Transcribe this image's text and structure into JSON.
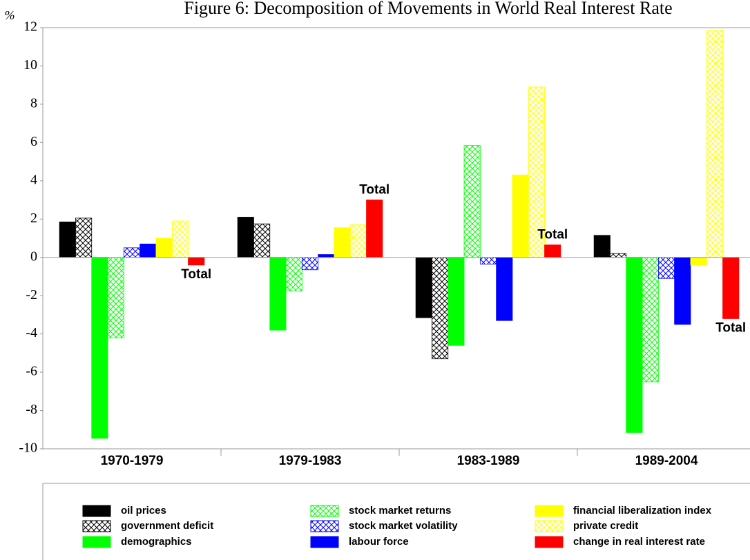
{
  "chart_data": {
    "type": "bar",
    "title": "Figure 6: Decomposition of Movements in World Real Interest Rate",
    "y_label": "%",
    "categories": [
      "1970-1979",
      "1979-1983",
      "1983-1989",
      "1989-2004"
    ],
    "series": [
      {
        "name": "oil prices",
        "color": "#000000",
        "pattern": "solid",
        "values": [
          1.85,
          2.1,
          -3.15,
          1.15
        ]
      },
      {
        "name": "government deficit",
        "color": "#000000",
        "pattern": "crosshatch",
        "values": [
          2.05,
          1.75,
          -5.3,
          0.2
        ]
      },
      {
        "name": "demographics",
        "color": "#00ff00",
        "pattern": "solid",
        "values": [
          -9.45,
          -3.8,
          -4.6,
          -9.15
        ]
      },
      {
        "name": "stock market returns",
        "color": "#00ff00",
        "pattern": "crosshatch",
        "values": [
          -4.2,
          -1.75,
          5.85,
          -6.5
        ]
      },
      {
        "name": "stock market volatility",
        "color": "#0000ff",
        "pattern": "crosshatch",
        "values": [
          0.5,
          -0.65,
          -0.35,
          -1.1
        ]
      },
      {
        "name": "labour force",
        "color": "#0000ff",
        "pattern": "solid",
        "values": [
          0.7,
          0.15,
          -3.3,
          -3.5
        ]
      },
      {
        "name": "financial liberalization index",
        "color": "#ffff00",
        "pattern": "solid",
        "values": [
          1.0,
          1.55,
          4.3,
          -0.4
        ]
      },
      {
        "name": "private credit",
        "color": "#ffff00",
        "pattern": "crosshatch",
        "values": [
          1.9,
          1.7,
          8.9,
          11.85
        ]
      },
      {
        "name": "change in real interest rate",
        "color": "#ff0000",
        "pattern": "solid",
        "values": [
          -0.4,
          3.0,
          0.65,
          -3.2
        ]
      }
    ],
    "annotations": [
      "Total",
      "Total",
      "Total",
      "Total"
    ],
    "ylim": [
      -10,
      12
    ],
    "yticks": [
      -10,
      -8,
      -6,
      -4,
      -2,
      0,
      2,
      4,
      6,
      8,
      10,
      12
    ]
  }
}
